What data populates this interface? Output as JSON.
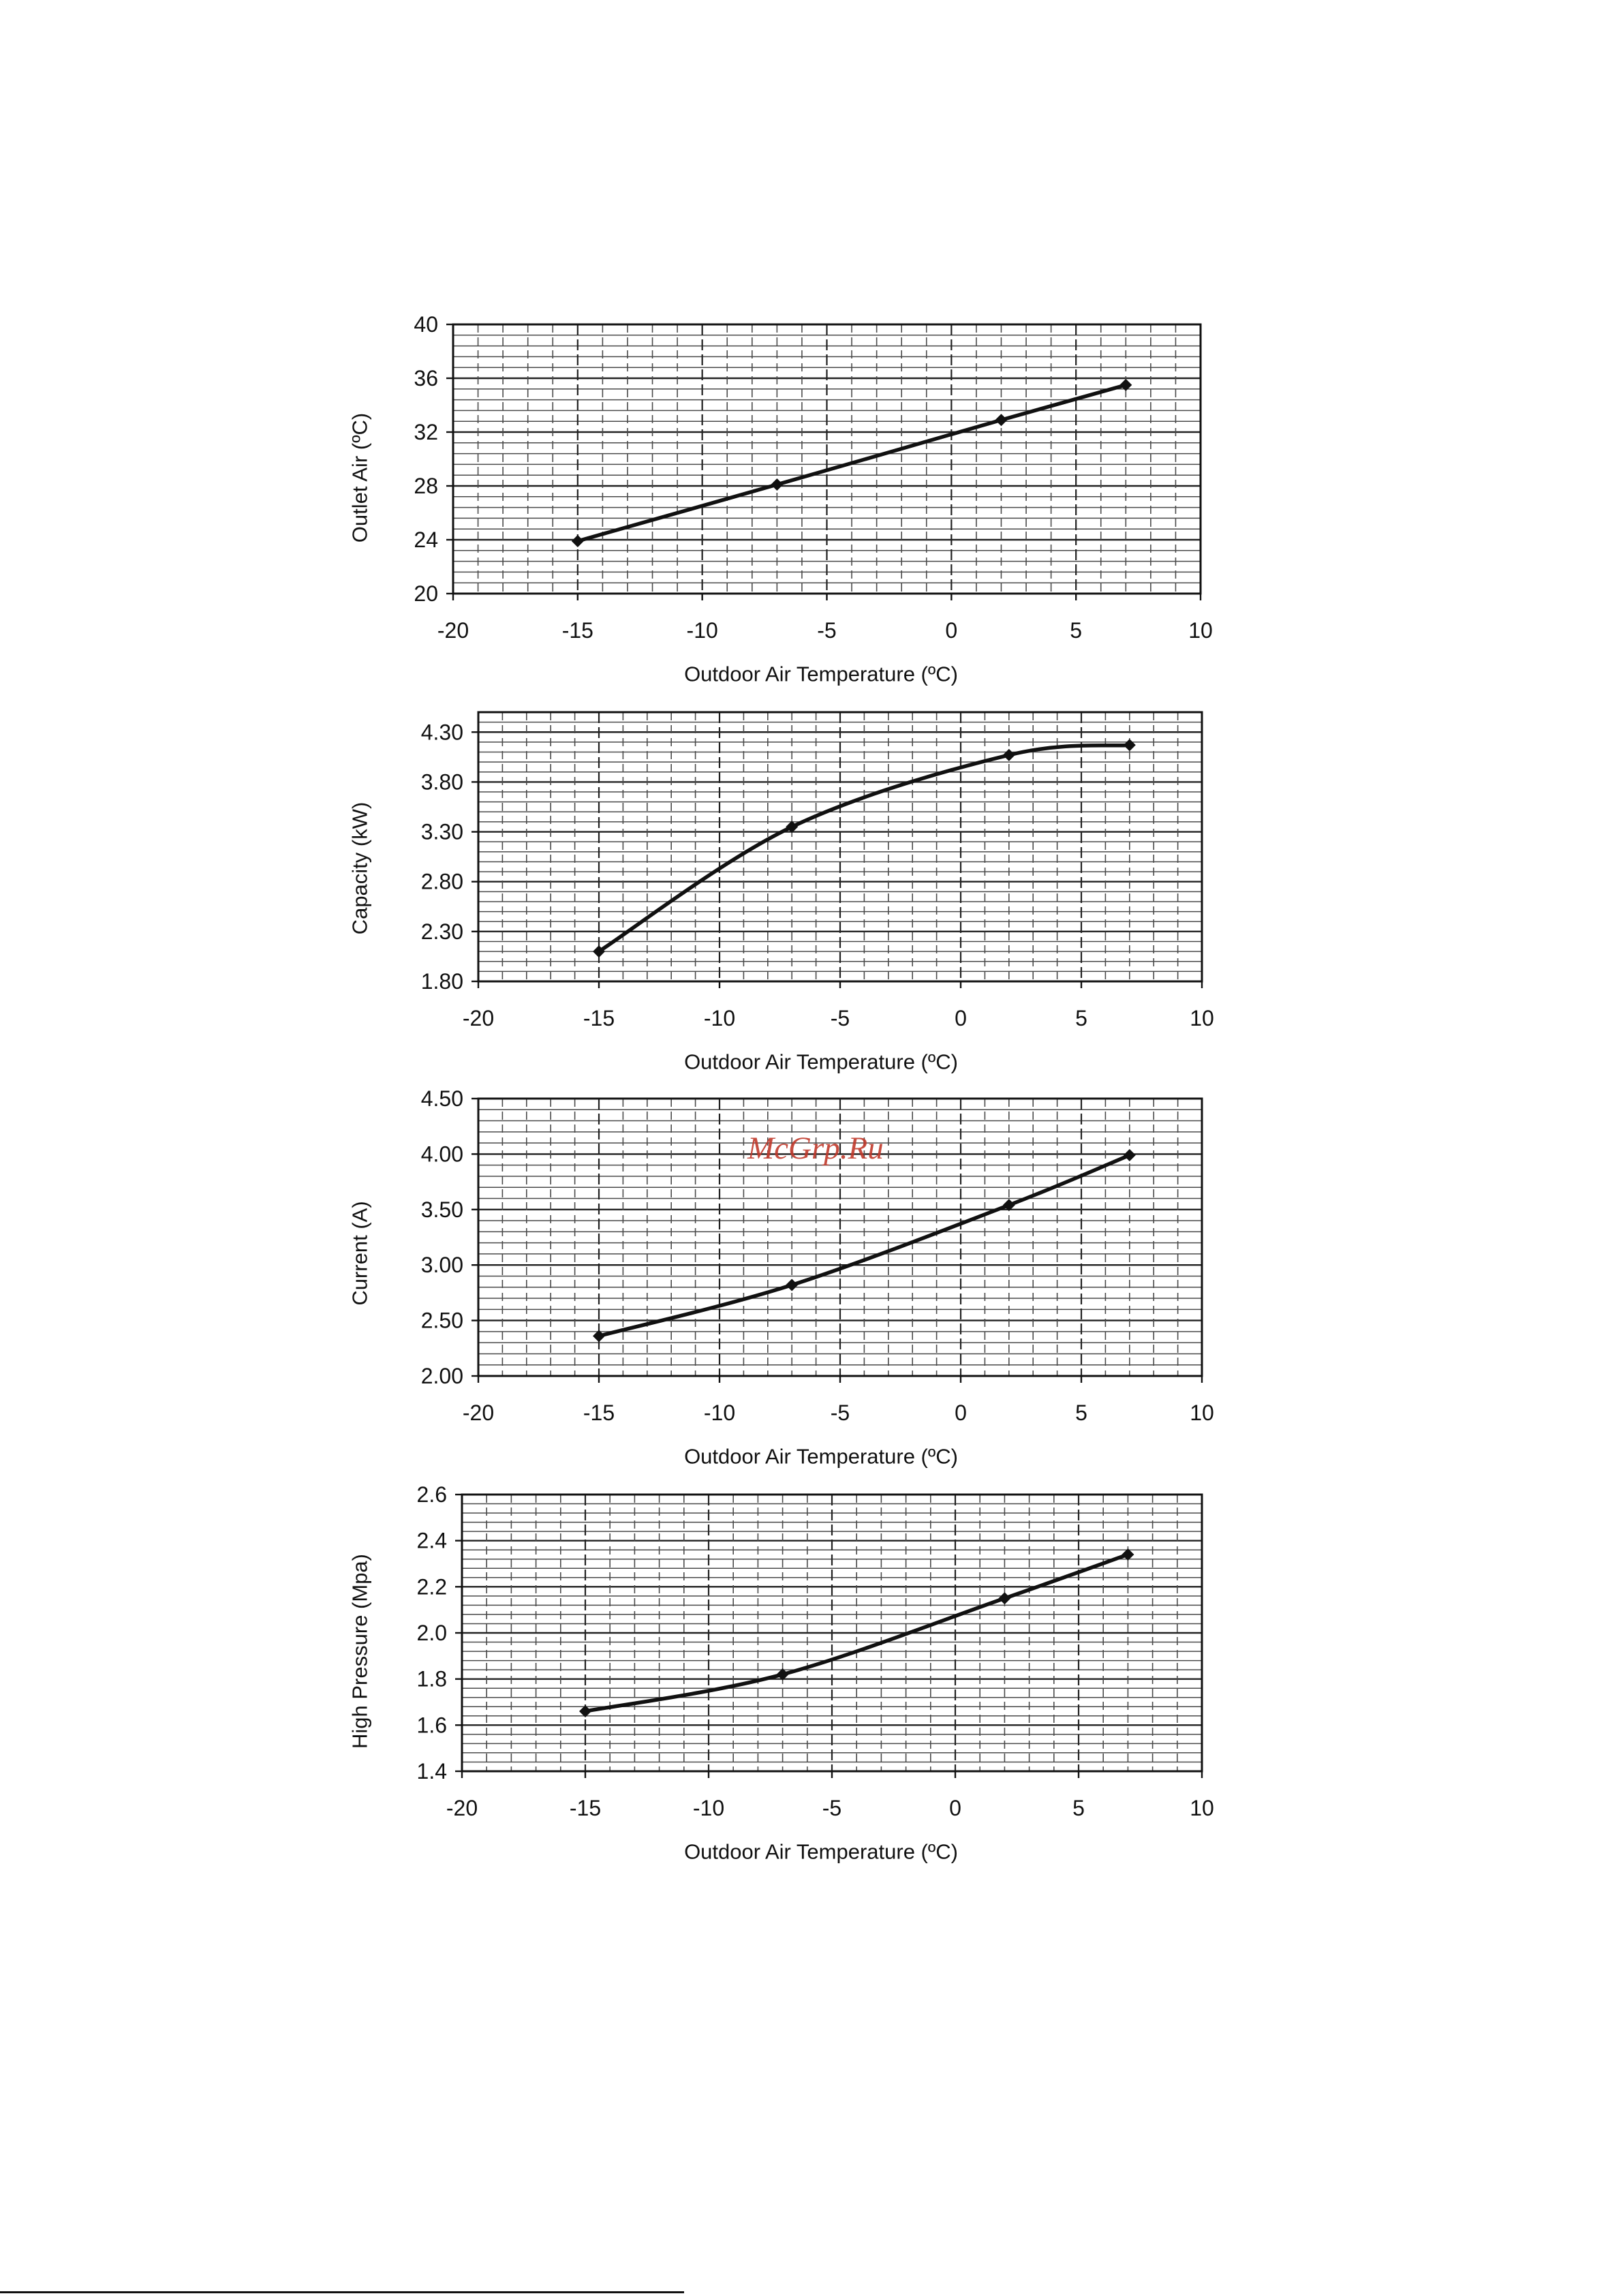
{
  "watermark": "McGrp.Ru",
  "colors": {
    "line": "#111111",
    "grid_minor": "#4a4a4a",
    "grid_major": "#222222",
    "axis": "#111111",
    "watermark": "#c0392b"
  },
  "chart_data": [
    {
      "type": "line",
      "xlabel": "Outdoor Air Temperature (ºC)",
      "ylabel": "Outlet Air (ºC)",
      "x_ticks": [
        "-20",
        "-15",
        "-10",
        "-5",
        "0",
        "5",
        "10"
      ],
      "y_ticks": [
        "20",
        "24",
        "28",
        "32",
        "36",
        "40"
      ],
      "xlim": [
        -20,
        10
      ],
      "ylim": [
        20,
        40
      ],
      "grid": true,
      "x": [
        -15,
        -7,
        2,
        7
      ],
      "series": [
        {
          "values": [
            23.9,
            28.1,
            32.9,
            35.5
          ]
        }
      ]
    },
    {
      "type": "line",
      "xlabel": "Outdoor Air Temperature (ºC)",
      "ylabel": "Capacity (kW)",
      "x_ticks": [
        "-20",
        "-15",
        "-10",
        "-5",
        "0",
        "5",
        "10"
      ],
      "y_ticks": [
        "1.80",
        "2.30",
        "2.80",
        "3.30",
        "3.80",
        "4.30"
      ],
      "xlim": [
        -20,
        10
      ],
      "ylim": [
        1.8,
        4.5
      ],
      "grid": true,
      "x": [
        -15,
        -7,
        2,
        7
      ],
      "series": [
        {
          "values": [
            2.1,
            3.35,
            4.07,
            4.17
          ]
        }
      ]
    },
    {
      "type": "line",
      "xlabel": "Outdoor Air Temperature (ºC)",
      "ylabel": "Current (A)",
      "x_ticks": [
        "-20",
        "-15",
        "-10",
        "-5",
        "0",
        "5",
        "10"
      ],
      "y_ticks": [
        "2.00",
        "2.50",
        "3.00",
        "3.50",
        "4.00",
        "4.50"
      ],
      "xlim": [
        -20,
        10
      ],
      "ylim": [
        2.0,
        4.5
      ],
      "grid": true,
      "x": [
        -15,
        -7,
        2,
        7
      ],
      "series": [
        {
          "values": [
            2.36,
            2.82,
            3.54,
            3.99
          ]
        }
      ]
    },
    {
      "type": "line",
      "xlabel": "Outdoor Air Temperature (ºC)",
      "ylabel": "High Pressure (Mpa)",
      "x_ticks": [
        "-20",
        "-15",
        "-10",
        "-5",
        "0",
        "5",
        "10"
      ],
      "y_ticks": [
        "1.4",
        "1.6",
        "1.8",
        "2.0",
        "2.2",
        "2.4",
        "2.6"
      ],
      "xlim": [
        -20,
        10
      ],
      "ylim": [
        1.4,
        2.6
      ],
      "grid": true,
      "x": [
        -15,
        -7,
        2,
        7
      ],
      "series": [
        {
          "values": [
            1.66,
            1.82,
            2.15,
            2.34
          ]
        }
      ]
    }
  ]
}
